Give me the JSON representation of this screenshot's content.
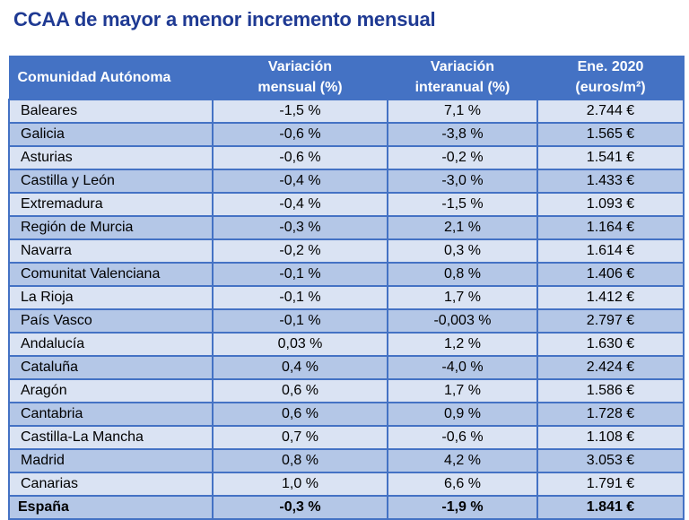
{
  "title": "CCAA de mayor a menor incremento mensual",
  "columns": {
    "region": "Comunidad Autónoma",
    "monthly_line1": "Variación",
    "monthly_line2": "mensual (%)",
    "yearly_line1": "Variación",
    "yearly_line2": "interanual (%)",
    "price_line1": "Ene. 2020",
    "price_line2": "(euros/m²)"
  },
  "colors": {
    "header_bg": "#4472c4",
    "row_light": "#dae3f3",
    "row_mid": "#b4c7e7",
    "negative_text": "#c00000",
    "title_text": "#1f3a93"
  },
  "rows": [
    {
      "region": "Baleares",
      "monthly": "-1,5 %",
      "yearly": "7,1 %",
      "price": "2.744 €"
    },
    {
      "region": "Galicia",
      "monthly": "-0,6 %",
      "yearly": "-3,8 %",
      "price": "1.565 €"
    },
    {
      "region": "Asturias",
      "monthly": "-0,6 %",
      "yearly": "-0,2 %",
      "price": "1.541 €"
    },
    {
      "region": "Castilla y León",
      "monthly": "-0,4 %",
      "yearly": "-3,0 %",
      "price": "1.433 €"
    },
    {
      "region": "Extremadura",
      "monthly": "-0,4 %",
      "yearly": "-1,5 %",
      "price": "1.093 €"
    },
    {
      "region": "Región de Murcia",
      "monthly": "-0,3 %",
      "yearly": "2,1 %",
      "price": "1.164 €"
    },
    {
      "region": "Navarra",
      "monthly": "-0,2 %",
      "yearly": "0,3 %",
      "price": "1.614 €"
    },
    {
      "region": "Comunitat Valenciana",
      "monthly": "-0,1 %",
      "yearly": "0,8 %",
      "price": "1.406 €"
    },
    {
      "region": "La Rioja",
      "monthly": "-0,1 %",
      "yearly": "1,7 %",
      "price": "1.412 €"
    },
    {
      "region": "País Vasco",
      "monthly": "-0,1 %",
      "yearly": "-0,003 %",
      "price": "2.797 €"
    },
    {
      "region": "Andalucía",
      "monthly": "0,03 %",
      "yearly": "1,2 %",
      "price": "1.630 €"
    },
    {
      "region": "Cataluña",
      "monthly": "0,4 %",
      "yearly": "-4,0 %",
      "price": "2.424 €"
    },
    {
      "region": "Aragón",
      "monthly": "0,6 %",
      "yearly": "1,7 %",
      "price": "1.586 €"
    },
    {
      "region": "Cantabria",
      "monthly": "0,6 %",
      "yearly": "0,9 %",
      "price": "1.728 €"
    },
    {
      "region": "Castilla-La Mancha",
      "monthly": "0,7 %",
      "yearly": "-0,6 %",
      "price": "1.108 €"
    },
    {
      "region": "Madrid",
      "monthly": "0,8 %",
      "yearly": "4,2 %",
      "price": "3.053 €"
    },
    {
      "region": "Canarias",
      "monthly": "1,0 %",
      "yearly": "6,6 %",
      "price": "1.791 €"
    }
  ],
  "total": {
    "region": "España",
    "monthly": "-0,3 %",
    "yearly": "-1,9 %",
    "price": "1.841 €"
  }
}
